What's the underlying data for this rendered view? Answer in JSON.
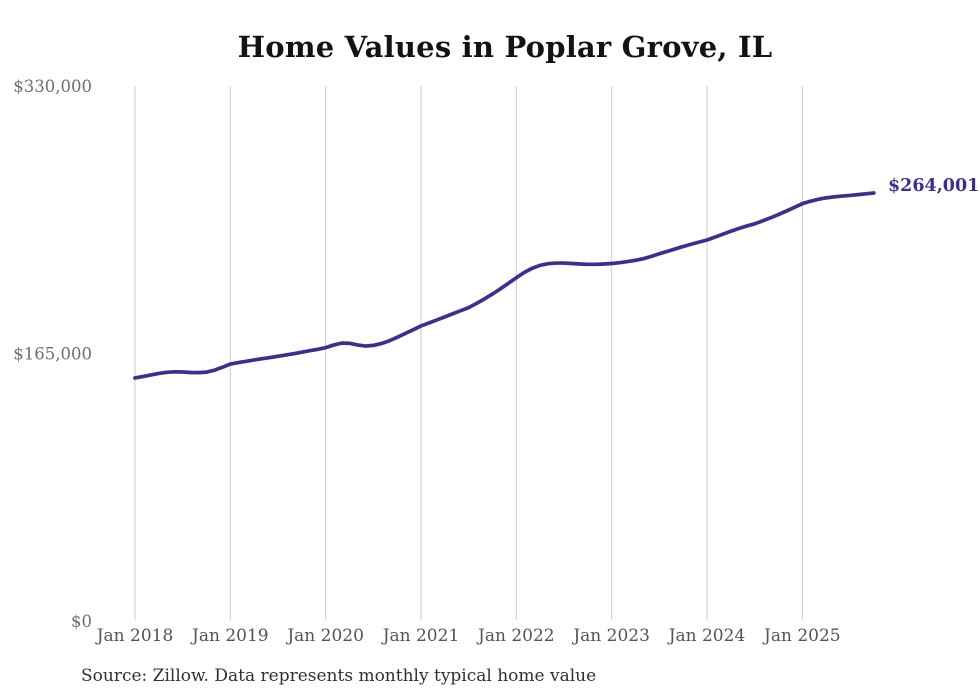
{
  "title": "Home Values in Poplar Grove, IL",
  "source_note": "Source: Zillow. Data represents monthly typical home value",
  "colors": {
    "line": "#3a318f",
    "end_label": "#3a318f",
    "grid": "#cdcdcd",
    "y_axis_text": "#6e6e6e",
    "x_axis_text": "#545454",
    "title_text": "#131313",
    "source_text": "#303030",
    "background": "#ffffff"
  },
  "chart_data": {
    "type": "line",
    "title": "Home Values in Poplar Grove, IL",
    "xlabel": "",
    "ylabel": "",
    "ylim": [
      0,
      330000
    ],
    "grid": "vertical-only",
    "legend": "none",
    "x_start_month": "Jan 2018",
    "x_end_month": "Oct 2025",
    "x_tick_labels": [
      "Jan 2018",
      "Jan 2019",
      "Jan 2020",
      "Jan 2021",
      "Jan 2022",
      "Jan 2023",
      "Jan 2024",
      "Jan 2025"
    ],
    "y_ticks": [
      {
        "value": 0,
        "label": "$0"
      },
      {
        "value": 165000,
        "label": "$165,000"
      },
      {
        "value": 330000,
        "label": "$330,000"
      }
    ],
    "end_annotation": {
      "text": "$264,001",
      "value": 264001
    },
    "series": [
      {
        "name": "Monthly typical home value",
        "monthly_values": [
          149900,
          150800,
          151800,
          152700,
          153400,
          153700,
          153600,
          153300,
          153200,
          153500,
          154700,
          156500,
          158500,
          159400,
          160200,
          161000,
          161800,
          162500,
          163300,
          164100,
          164900,
          165800,
          166700,
          167600,
          168600,
          170200,
          171400,
          171300,
          170300,
          169600,
          170000,
          171100,
          172800,
          175000,
          177300,
          179600,
          182000,
          183800,
          185700,
          187600,
          189500,
          191400,
          193300,
          195900,
          198700,
          201700,
          204900,
          208300,
          211700,
          215000,
          217600,
          219400,
          220400,
          220800,
          220800,
          220500,
          220200,
          220000,
          220000,
          220200,
          220500,
          221000,
          221700,
          222500,
          223500,
          224900,
          226500,
          228000,
          229500,
          231000,
          232400,
          233700,
          235000,
          236800,
          238600,
          240400,
          242100,
          243600,
          245000,
          246800,
          248700,
          250700,
          252900,
          255100,
          257400,
          258900,
          260100,
          261000,
          261600,
          262100,
          262500,
          263000,
          263500,
          264001
        ]
      }
    ]
  }
}
